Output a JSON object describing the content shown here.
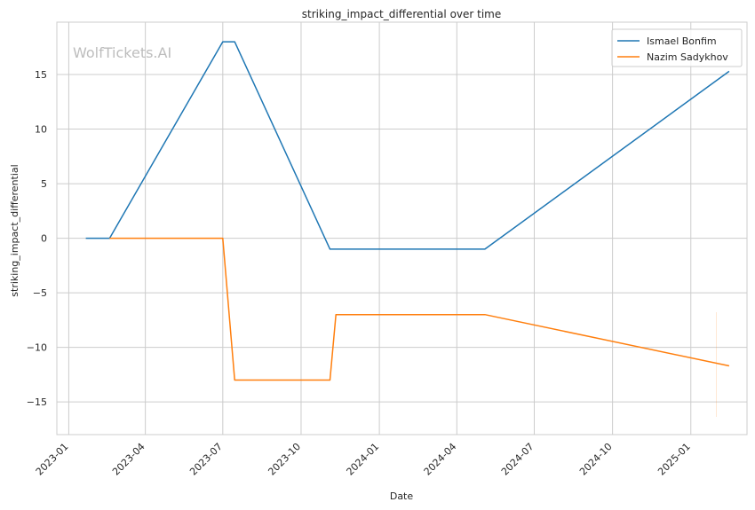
{
  "chart_data": {
    "type": "line",
    "title": "striking_impact_differential over time",
    "xlabel": "Date",
    "ylabel": "striking_impact_differential",
    "watermark": "WolfTickets.AI",
    "x_tick_labels": [
      "2023-01",
      "2023-04",
      "2023-07",
      "2023-10",
      "2024-01",
      "2024-04",
      "2024-07",
      "2024-10",
      "2025-01"
    ],
    "y_ticks": [
      15,
      10,
      5,
      0,
      -5,
      -10,
      -15
    ],
    "y_tick_labels": [
      "15",
      "10",
      "5",
      "0",
      "−5",
      "−10",
      "−15"
    ],
    "xlim": [
      "2022-12-18",
      "2025-03-08"
    ],
    "ylim": [
      -18,
      19.8
    ],
    "grid": true,
    "legend_position": "top-right",
    "series": [
      {
        "name": "Ismael Bonfim",
        "color": "#1f77b4",
        "x": [
          "2023-01-21",
          "2023-02-18",
          "2023-07-01",
          "2023-07-15",
          "2023-11-04",
          "2024-05-04",
          "2025-02-15"
        ],
        "y": [
          0,
          0,
          18,
          18,
          -1,
          -1,
          15.3
        ]
      },
      {
        "name": "Nazim Sadykhov",
        "color": "#ff7f0e",
        "x": [
          "2023-02-18",
          "2023-07-01",
          "2023-07-15",
          "2023-11-04",
          "2023-11-11",
          "2024-05-04",
          "2025-02-15"
        ],
        "y": [
          0,
          0,
          -13,
          -13,
          -7,
          -7,
          -11.7
        ]
      }
    ]
  }
}
